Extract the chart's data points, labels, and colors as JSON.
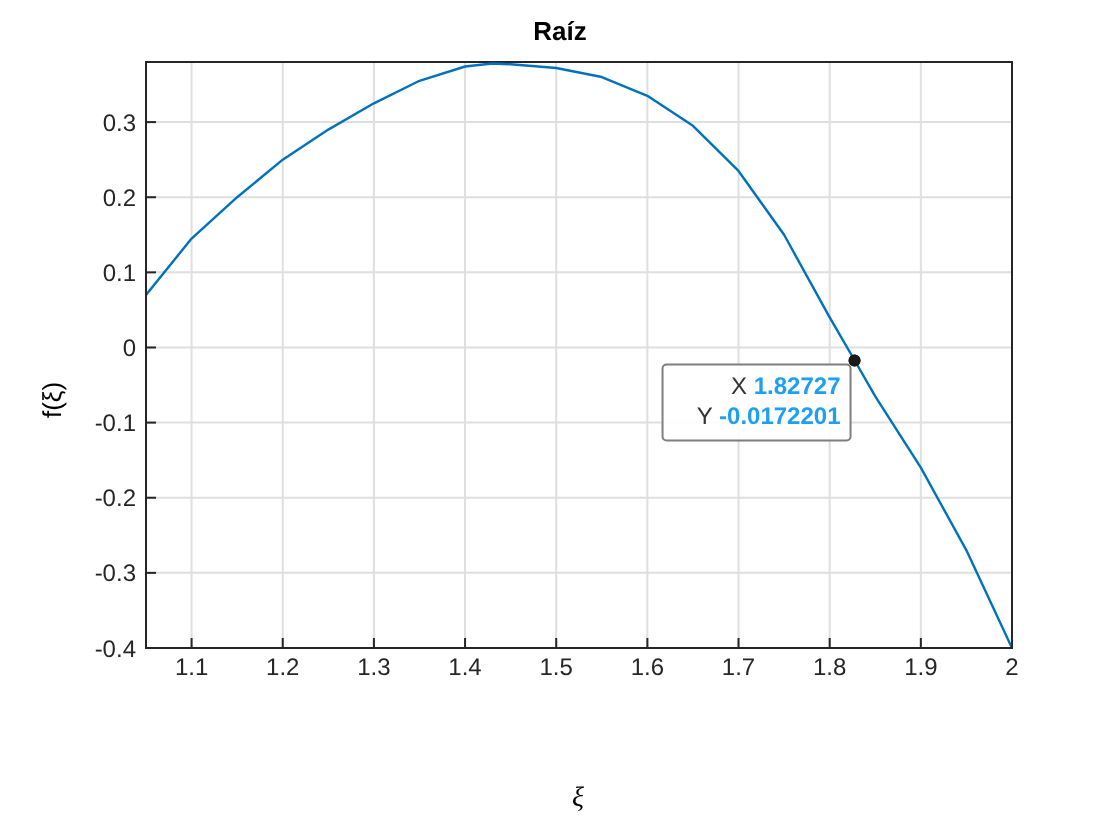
{
  "chart_data": {
    "type": "line",
    "title": "Raíz",
    "xlabel": "ξ",
    "ylabel": "f(ξ)",
    "x": [
      1.05,
      1.1,
      1.15,
      1.2,
      1.25,
      1.3,
      1.35,
      1.4,
      1.43,
      1.45,
      1.5,
      1.55,
      1.6,
      1.65,
      1.7,
      1.75,
      1.8,
      1.82727,
      1.85,
      1.9,
      1.95,
      2
    ],
    "series": [
      {
        "color": "#0072bd",
        "values": [
          0.07,
          0.145,
          0.2,
          0.25,
          0.29,
          0.325,
          0.355,
          0.374,
          0.378,
          0.377,
          0.372,
          0.36,
          0.335,
          0.295,
          0.235,
          0.15,
          0.04,
          -0.017,
          -0.065,
          -0.16,
          -0.27,
          -0.4
        ]
      }
    ],
    "xlim": [
      1.05,
      2
    ],
    "xticks": [
      1.1,
      1.2,
      1.3,
      1.4,
      1.5,
      1.6,
      1.7,
      1.8,
      1.9,
      2
    ],
    "ylim": [
      -0.4,
      0.38
    ],
    "yticks": [
      -0.4,
      -0.3,
      -0.2,
      -0.1,
      0,
      0.1,
      0.2,
      0.3
    ],
    "grid": true,
    "legend": false,
    "marker": "none",
    "line_style": "solid",
    "annotations": [
      {
        "text": "X 1.82727",
        "x": 1.82727,
        "y": -0.0172201
      },
      {
        "text": "Y -0.0172201",
        "x": 1.82727,
        "y": -0.0172201
      }
    ]
  }
}
